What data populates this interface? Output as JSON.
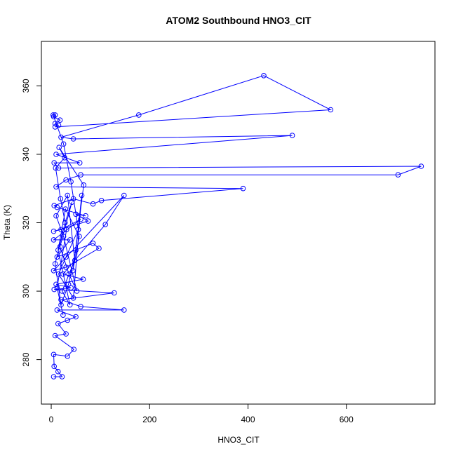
{
  "chart_data": {
    "type": "line",
    "title": "ATOM2 Southbound HNO3_CIT",
    "xlabel": "HNO3_CIT",
    "ylabel": "Theta (K)",
    "xlim": [
      -20,
      780
    ],
    "ylim": [
      267,
      373
    ],
    "x_ticks": [
      0,
      200,
      400,
      600
    ],
    "y_ticks": [
      280,
      300,
      320,
      340,
      360
    ],
    "grid": false,
    "legend": "none",
    "series": [
      {
        "color": "#0000ff",
        "marker": "open-circle",
        "points": [
          [
            5,
            275
          ],
          [
            22,
            275
          ],
          [
            14,
            276.5
          ],
          [
            6,
            278
          ],
          [
            5,
            281.5
          ],
          [
            33,
            281
          ],
          [
            46,
            283
          ],
          [
            8,
            287
          ],
          [
            30,
            287.5
          ],
          [
            14,
            290.5
          ],
          [
            33,
            291.5
          ],
          [
            50,
            292.5
          ],
          [
            12,
            294.5
          ],
          [
            148,
            294.5
          ],
          [
            60,
            295.5
          ],
          [
            20,
            297.5
          ],
          [
            128,
            299.5
          ],
          [
            6,
            300.5
          ],
          [
            40,
            301
          ],
          [
            10,
            302
          ],
          [
            65,
            303.5
          ],
          [
            24,
            305
          ],
          [
            110,
            319.5
          ],
          [
            148,
            328
          ],
          [
            5,
            306
          ],
          [
            30,
            307
          ],
          [
            97,
            312.5
          ],
          [
            85,
            314
          ],
          [
            12,
            310
          ],
          [
            38,
            315
          ],
          [
            5,
            315
          ],
          [
            60,
            321
          ],
          [
            20,
            318
          ],
          [
            5,
            317.5
          ],
          [
            75,
            320.5
          ],
          [
            50,
            322.5
          ],
          [
            70,
            322
          ],
          [
            12,
            324.5
          ],
          [
            6,
            325
          ],
          [
            45,
            327
          ],
          [
            85,
            325.5
          ],
          [
            102,
            326.5
          ],
          [
            390,
            330
          ],
          [
            10,
            330.5
          ],
          [
            30,
            332.5
          ],
          [
            60,
            334
          ],
          [
            705,
            334
          ],
          [
            752,
            336.5
          ],
          [
            15,
            336
          ],
          [
            6,
            337.5
          ],
          [
            58,
            337.5
          ],
          [
            10,
            340
          ],
          [
            490,
            345.5
          ],
          [
            45,
            344.5
          ],
          [
            20,
            345
          ],
          [
            178,
            351.5
          ],
          [
            432,
            363
          ],
          [
            568,
            353
          ],
          [
            8,
            348
          ],
          [
            15,
            348.5
          ],
          [
            8,
            349
          ],
          [
            18,
            350
          ],
          [
            5,
            351
          ],
          [
            8,
            351.5
          ],
          [
            4,
            351.5
          ],
          [
            25,
            343
          ],
          [
            40,
            332
          ],
          [
            55,
            318
          ],
          [
            30,
            310
          ],
          [
            15,
            305
          ],
          [
            45,
            298
          ],
          [
            62,
            328
          ],
          [
            50,
            312
          ],
          [
            35,
            302
          ],
          [
            20,
            296
          ],
          [
            8,
            308
          ],
          [
            28,
            320
          ],
          [
            42,
            326
          ],
          [
            18,
            313
          ],
          [
            36,
            305
          ],
          [
            52,
            300
          ],
          [
            25,
            316
          ],
          [
            10,
            322
          ],
          [
            33,
            328
          ],
          [
            48,
            309
          ],
          [
            22,
            300
          ],
          [
            38,
            296
          ],
          [
            14,
            312
          ],
          [
            29,
            324
          ],
          [
            57,
            316
          ],
          [
            44,
            306
          ],
          [
            66,
            331
          ],
          [
            16,
            342
          ],
          [
            27,
            339
          ],
          [
            9,
            336
          ],
          [
            19,
            327
          ],
          [
            31,
            318
          ],
          [
            12,
            301
          ],
          [
            24,
            293
          ]
        ]
      }
    ]
  }
}
